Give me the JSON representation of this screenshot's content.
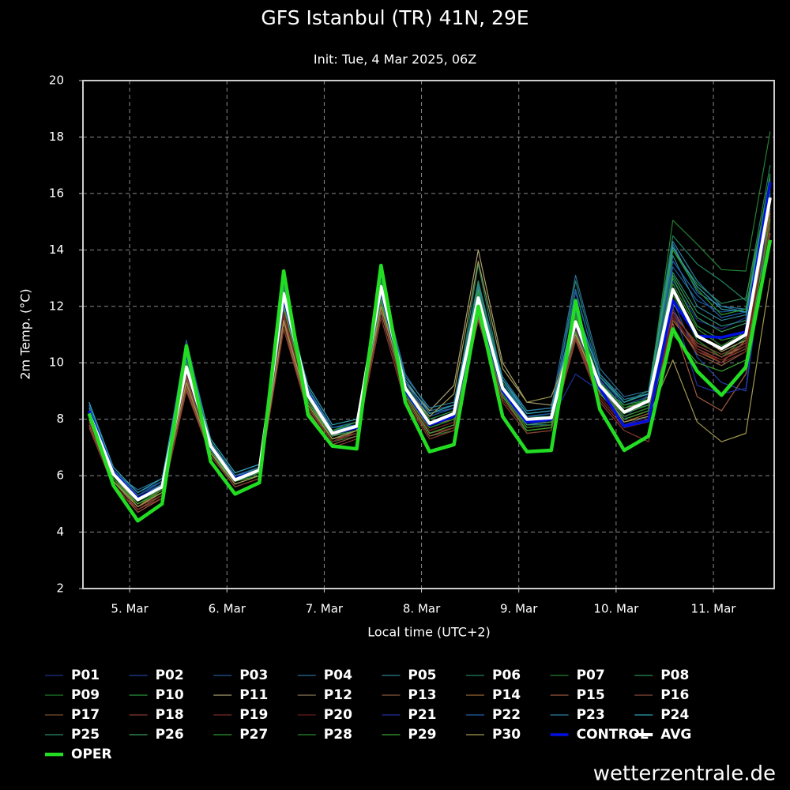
{
  "chart_data": {
    "type": "line",
    "title": "GFS Istanbul (TR) 41N, 29E",
    "subtitle": "Init: Tue, 4 Mar 2025, 06Z",
    "y_label": "2m Temp. (°C)",
    "x_label": "Local time (UTC+2)",
    "watermark": "wetterzentrale.de",
    "grid": true,
    "xlim": [
      4.52,
      11.625
    ],
    "xticks": [
      {
        "value": 5,
        "label": "5. Mar"
      },
      {
        "value": 6,
        "label": "6. Mar"
      },
      {
        "value": 7,
        "label": "7. Mar"
      },
      {
        "value": 8,
        "label": "8. Mar"
      },
      {
        "value": 9,
        "label": "9. Mar"
      },
      {
        "value": 10,
        "label": "10. Mar"
      },
      {
        "value": 11,
        "label": "11. Mar"
      }
    ],
    "ylim": [
      2,
      20
    ],
    "yticks": [
      2,
      4,
      6,
      8,
      10,
      12,
      14,
      16,
      18,
      20
    ],
    "x": [
      4.5833,
      4.8333,
      5.0833,
      5.3333,
      5.5833,
      5.8333,
      6.0833,
      6.3333,
      6.5833,
      6.8333,
      7.0833,
      7.3333,
      7.5833,
      7.8333,
      8.0833,
      8.3333,
      8.5833,
      8.8333,
      9.0833,
      9.3333,
      9.5833,
      9.8333,
      10.0833,
      10.3333,
      10.5833,
      10.8333,
      11.0833,
      11.3333,
      11.5833
    ],
    "series": [
      {
        "name": "P01",
        "color": "#1f2f8f",
        "width": 1.2,
        "values": [
          8.4,
          6.1,
          5.3,
          5.7,
          9.7,
          7.1,
          5.9,
          6.3,
          12.0,
          9.0,
          7.6,
          7.9,
          12.4,
          9.3,
          8.0,
          8.3,
          11.8,
          9.2,
          8.1,
          8.2,
          11.0,
          9.4,
          8.0,
          8.9,
          12.9,
          11.5,
          11.2,
          11.6,
          16.2
        ]
      },
      {
        "name": "P02",
        "color": "#2040a0",
        "width": 1.2,
        "values": [
          8.3,
          6.0,
          5.2,
          5.6,
          10.2,
          7.0,
          5.8,
          6.1,
          12.8,
          8.7,
          7.4,
          7.6,
          13.0,
          9.0,
          7.7,
          8.0,
          12.6,
          9.0,
          7.9,
          7.9,
          11.8,
          9.1,
          8.1,
          8.4,
          12.2,
          10.2,
          9.3,
          9.0,
          15.2
        ]
      },
      {
        "name": "P03",
        "color": "#1f5a9a",
        "width": 1.2,
        "values": [
          8.5,
          6.2,
          5.4,
          5.8,
          10.8,
          7.2,
          6.0,
          6.3,
          12.2,
          9.1,
          7.7,
          7.8,
          12.5,
          9.4,
          8.2,
          8.4,
          12.0,
          9.3,
          8.2,
          8.3,
          12.5,
          9.5,
          8.5,
          8.8,
          13.4,
          12.2,
          11.8,
          11.9,
          16.6
        ]
      },
      {
        "name": "P04",
        "color": "#2a6d9a",
        "width": 1.2,
        "values": [
          8.6,
          6.1,
          5.5,
          5.9,
          9.5,
          7.3,
          6.1,
          6.4,
          12.6,
          8.9,
          7.5,
          7.7,
          12.9,
          9.6,
          8.3,
          8.5,
          12.9,
          9.4,
          8.3,
          8.4,
          13.1,
          9.8,
          8.8,
          9.0,
          14.2,
          12.5,
          12.0,
          11.8,
          16.0
        ]
      },
      {
        "name": "P05",
        "color": "#2a8090",
        "width": 1.2,
        "values": [
          8.1,
          5.9,
          5.0,
          5.5,
          9.4,
          6.9,
          5.7,
          6.0,
          11.8,
          8.6,
          7.3,
          7.5,
          12.2,
          8.8,
          7.6,
          7.9,
          11.5,
          8.8,
          7.8,
          7.8,
          10.9,
          8.9,
          8.3,
          8.6,
          13.8,
          12.0,
          11.5,
          11.7,
          15.5
        ]
      },
      {
        "name": "P06",
        "color": "#1f8060",
        "width": 1.2,
        "values": [
          8.2,
          6.0,
          5.1,
          5.6,
          10.4,
          7.1,
          5.9,
          6.2,
          13.0,
          8.8,
          7.6,
          7.8,
          13.3,
          9.2,
          7.9,
          8.2,
          13.5,
          9.3,
          8.1,
          8.1,
          12.9,
          9.6,
          8.6,
          9.0,
          14.5,
          13.5,
          12.9,
          12.2,
          17.0
        ]
      },
      {
        "name": "P07",
        "color": "#228030",
        "width": 1.2,
        "values": [
          8.0,
          5.8,
          5.0,
          5.4,
          10.0,
          6.8,
          5.6,
          5.9,
          12.3,
          8.5,
          7.2,
          7.4,
          12.8,
          8.7,
          7.4,
          7.6,
          12.4,
          8.9,
          7.5,
          7.6,
          11.2,
          9.0,
          8.2,
          8.8,
          15.05,
          14.2,
          13.3,
          13.25,
          18.2
        ]
      },
      {
        "name": "P08",
        "color": "#2e8b57",
        "width": 1.2,
        "values": [
          8.3,
          6.1,
          5.2,
          5.7,
          9.9,
          7.0,
          5.9,
          6.3,
          12.7,
          8.9,
          7.6,
          7.9,
          12.6,
          9.1,
          7.9,
          8.2,
          12.8,
          9.2,
          8.0,
          8.1,
          11.9,
          9.3,
          8.4,
          8.7,
          14.0,
          12.8,
          12.1,
          12.3,
          16.4
        ]
      },
      {
        "name": "P09",
        "color": "#1f7f2a",
        "width": 1.2,
        "values": [
          8.2,
          5.9,
          5.1,
          5.5,
          9.6,
          7.0,
          5.8,
          6.1,
          11.9,
          8.6,
          7.4,
          7.7,
          12.3,
          8.9,
          7.7,
          8.0,
          12.1,
          8.9,
          7.8,
          7.9,
          11.3,
          9.1,
          8.3,
          8.5,
          12.4,
          10.8,
          10.2,
          10.9,
          15.9
        ]
      },
      {
        "name": "P10",
        "color": "#2a9a3a",
        "width": 1.2,
        "values": [
          8.4,
          6.2,
          5.3,
          5.8,
          10.3,
          7.2,
          6.0,
          6.3,
          12.9,
          9.0,
          7.7,
          7.9,
          12.4,
          9.2,
          8.0,
          8.3,
          12.2,
          9.1,
          8.0,
          8.0,
          11.6,
          9.2,
          8.5,
          8.7,
          13.0,
          11.3,
          10.8,
          11.0,
          16.1
        ]
      },
      {
        "name": "P11",
        "color": "#a8a070",
        "width": 1.2,
        "values": [
          8.1,
          6.0,
          5.0,
          5.5,
          9.2,
          6.9,
          5.8,
          6.2,
          11.5,
          8.7,
          7.4,
          7.8,
          12.0,
          9.3,
          8.3,
          9.2,
          14.0,
          10.0,
          8.6,
          8.5,
          11.0,
          9.3,
          8.4,
          8.6,
          12.1,
          11.0,
          10.4,
          10.8,
          15.3
        ]
      },
      {
        "name": "P12",
        "color": "#8a7a5a",
        "width": 1.2,
        "values": [
          8.0,
          5.9,
          4.9,
          5.4,
          9.0,
          6.8,
          5.7,
          6.0,
          11.2,
          8.4,
          7.2,
          7.5,
          11.8,
          8.8,
          7.5,
          7.8,
          11.6,
          8.8,
          7.7,
          7.8,
          11.1,
          9.0,
          8.0,
          8.3,
          11.8,
          10.6,
          10.2,
          10.6,
          15.0
        ]
      },
      {
        "name": "P13",
        "color": "#8a5a40",
        "width": 1.2,
        "values": [
          7.9,
          5.8,
          4.8,
          5.3,
          9.3,
          6.9,
          5.8,
          6.1,
          11.6,
          8.5,
          7.3,
          7.6,
          12.1,
          8.9,
          7.6,
          7.9,
          11.9,
          8.9,
          7.8,
          7.9,
          11.3,
          9.1,
          8.1,
          8.4,
          11.6,
          10.3,
          9.9,
          10.4,
          14.8
        ]
      },
      {
        "name": "P14",
        "color": "#9a6a30",
        "width": 1.2,
        "values": [
          8.0,
          5.9,
          4.9,
          5.5,
          9.5,
          7.0,
          5.9,
          6.2,
          11.9,
          8.7,
          7.5,
          7.7,
          12.4,
          9.0,
          7.8,
          8.0,
          12.3,
          9.0,
          7.9,
          8.0,
          11.2,
          9.0,
          7.9,
          8.2,
          11.5,
          10.4,
          10.0,
          10.8,
          15.4
        ]
      },
      {
        "name": "P15",
        "color": "#a05a40",
        "width": 1.2,
        "values": [
          7.8,
          5.7,
          4.7,
          5.2,
          9.1,
          6.7,
          5.6,
          5.9,
          11.4,
          8.3,
          7.1,
          7.4,
          11.9,
          8.7,
          7.4,
          7.7,
          11.7,
          8.7,
          7.6,
          7.7,
          10.9,
          8.7,
          7.7,
          8.0,
          11.4,
          8.8,
          8.3,
          9.6,
          14.6
        ]
      },
      {
        "name": "P16",
        "color": "#8a4a3a",
        "width": 1.2,
        "values": [
          8.1,
          5.9,
          5.0,
          5.4,
          9.4,
          6.9,
          5.7,
          6.0,
          11.7,
          8.5,
          7.3,
          7.5,
          12.1,
          8.8,
          7.6,
          7.9,
          12.0,
          8.9,
          7.7,
          7.8,
          11.0,
          8.8,
          7.8,
          8.1,
          11.9,
          10.5,
          10.1,
          10.5,
          15.1
        ]
      },
      {
        "name": "P17",
        "color": "#7a5030",
        "width": 1.2,
        "values": [
          7.9,
          5.8,
          4.9,
          5.3,
          9.2,
          6.8,
          5.8,
          6.1,
          11.5,
          8.4,
          7.2,
          7.6,
          11.9,
          8.9,
          7.5,
          7.8,
          11.8,
          8.8,
          7.7,
          7.8,
          11.1,
          8.9,
          8.0,
          8.3,
          11.7,
          10.7,
          10.3,
          10.7,
          15.2
        ]
      },
      {
        "name": "P18",
        "color": "#8a3a30",
        "width": 1.2,
        "values": [
          7.7,
          5.6,
          4.8,
          5.2,
          9.0,
          6.7,
          5.6,
          5.9,
          11.2,
          8.2,
          7.0,
          7.3,
          11.6,
          8.6,
          7.3,
          7.6,
          11.5,
          8.6,
          7.5,
          7.6,
          10.8,
          8.6,
          7.6,
          7.2,
          11.8,
          10.6,
          10.2,
          10.7,
          15.0
        ]
      },
      {
        "name": "P19",
        "color": "#7a2a2a",
        "width": 1.2,
        "values": [
          7.9,
          5.8,
          4.9,
          5.3,
          9.3,
          6.8,
          5.7,
          6.0,
          11.6,
          8.5,
          7.2,
          7.5,
          12.0,
          8.7,
          7.5,
          7.7,
          11.9,
          8.7,
          7.6,
          7.7,
          11.0,
          8.7,
          7.7,
          7.9,
          11.6,
          10.5,
          10.0,
          10.4,
          14.9
        ]
      },
      {
        "name": "P20",
        "color": "#6a1a1a",
        "width": 1.2,
        "values": [
          8.0,
          5.9,
          5.0,
          5.4,
          9.6,
          6.9,
          5.8,
          6.1,
          11.8,
          8.6,
          7.3,
          7.6,
          12.2,
          8.8,
          7.6,
          7.9,
          12.1,
          8.8,
          7.7,
          7.8,
          11.2,
          8.8,
          7.8,
          8.0,
          11.7,
          10.4,
          10.1,
          10.6,
          15.0
        ]
      },
      {
        "name": "P21",
        "color": "#2030a0",
        "width": 1.2,
        "values": [
          8.3,
          6.1,
          5.2,
          5.6,
          9.8,
          7.0,
          5.9,
          6.2,
          12.2,
          8.9,
          7.6,
          7.8,
          12.5,
          9.0,
          7.8,
          8.1,
          12.1,
          8.9,
          7.8,
          8.0,
          9.6,
          9.0,
          7.8,
          8.1,
          12.0,
          9.2,
          8.9,
          9.1,
          16.0
        ]
      },
      {
        "name": "P22",
        "color": "#2060b0",
        "width": 1.2,
        "values": [
          8.5,
          6.2,
          5.3,
          5.8,
          10.0,
          7.1,
          6.0,
          6.3,
          12.5,
          9.0,
          7.7,
          7.9,
          12.8,
          9.3,
          8.1,
          8.4,
          12.4,
          9.2,
          8.1,
          8.2,
          12.6,
          9.4,
          8.4,
          8.7,
          13.6,
          12.4,
          11.6,
          11.8,
          16.3
        ]
      },
      {
        "name": "P23",
        "color": "#2a80a0",
        "width": 1.2,
        "values": [
          8.4,
          6.0,
          5.2,
          5.7,
          10.1,
          7.2,
          6.0,
          6.2,
          12.6,
          9.1,
          7.6,
          7.8,
          12.7,
          9.5,
          8.4,
          8.6,
          12.7,
          9.5,
          8.3,
          8.4,
          11.8,
          9.6,
          8.7,
          8.9,
          14.3,
          12.9,
          12.0,
          11.9,
          16.5
        ]
      },
      {
        "name": "P24",
        "color": "#30a0b0",
        "width": 1.2,
        "values": [
          8.6,
          6.3,
          5.4,
          5.9,
          10.5,
          7.3,
          6.1,
          6.4,
          12.4,
          9.2,
          7.8,
          8.0,
          12.6,
          9.4,
          8.2,
          8.5,
          12.5,
          9.4,
          8.2,
          8.3,
          12.0,
          9.5,
          8.6,
          8.9,
          14.1,
          12.7,
          11.9,
          11.8,
          16.2
        ]
      },
      {
        "name": "P25",
        "color": "#2a8a6a",
        "width": 1.2,
        "values": [
          8.2,
          6.0,
          5.1,
          5.6,
          9.7,
          7.0,
          5.8,
          6.1,
          12.1,
          8.7,
          7.5,
          7.7,
          12.5,
          9.0,
          7.8,
          8.1,
          12.9,
          9.1,
          7.9,
          8.0,
          11.5,
          9.2,
          8.3,
          8.6,
          13.2,
          11.8,
          11.3,
          11.5,
          16.0
        ]
      },
      {
        "name": "P26",
        "color": "#3a9a5a",
        "width": 1.2,
        "values": [
          8.1,
          5.9,
          5.0,
          5.5,
          9.8,
          6.9,
          5.7,
          6.0,
          12.0,
          8.6,
          7.4,
          7.6,
          12.3,
          8.9,
          7.7,
          8.0,
          12.6,
          9.0,
          7.8,
          7.9,
          11.4,
          9.1,
          8.2,
          8.5,
          13.1,
          11.6,
          11.1,
          11.4,
          15.7
        ]
      },
      {
        "name": "P27",
        "color": "#2a9a2a",
        "width": 1.2,
        "values": [
          8.3,
          6.0,
          5.1,
          5.6,
          10.0,
          7.0,
          5.8,
          6.2,
          12.4,
          8.8,
          7.6,
          7.9,
          12.9,
          9.1,
          7.9,
          8.2,
          12.5,
          9.0,
          7.9,
          8.0,
          11.7,
          9.3,
          8.4,
          8.7,
          14.0,
          12.6,
          11.7,
          11.9,
          16.7
        ]
      },
      {
        "name": "P28",
        "color": "#2a8a2a",
        "width": 1.2,
        "values": [
          8.2,
          5.9,
          5.0,
          5.5,
          9.9,
          7.1,
          5.9,
          6.1,
          12.2,
          8.7,
          7.5,
          7.7,
          12.4,
          8.9,
          7.7,
          8.0,
          12.2,
          8.9,
          7.7,
          7.8,
          11.3,
          9.0,
          8.1,
          8.4,
          12.8,
          11.2,
          10.6,
          11.1,
          15.9
        ]
      },
      {
        "name": "P29",
        "color": "#3aa030",
        "width": 1.2,
        "values": [
          8.1,
          5.8,
          5.0,
          5.4,
          9.7,
          6.9,
          5.8,
          6.0,
          12.0,
          8.6,
          7.3,
          7.6,
          12.2,
          8.8,
          7.5,
          7.8,
          11.9,
          8.8,
          7.6,
          7.7,
          11.1,
          8.9,
          8.0,
          8.3,
          11.0,
          10.0,
          9.7,
          10.1,
          15.1
        ]
      },
      {
        "name": "P30",
        "color": "#a09a50",
        "width": 1.2,
        "values": [
          8.0,
          5.8,
          4.9,
          5.4,
          9.3,
          6.8,
          5.7,
          6.0,
          11.5,
          8.5,
          7.3,
          7.6,
          12.0,
          9.1,
          8.1,
          8.9,
          13.6,
          9.8,
          8.6,
          8.8,
          11.0,
          9.0,
          7.9,
          8.1,
          10.1,
          7.9,
          7.2,
          7.5,
          13.0
        ]
      },
      {
        "name": "CONTROL",
        "color": "#0010e0",
        "width": 3.5,
        "values": [
          8.3,
          6.1,
          5.2,
          5.6,
          9.8,
          7.0,
          5.9,
          6.2,
          12.3,
          8.9,
          7.5,
          7.7,
          12.6,
          9.0,
          7.8,
          8.1,
          12.2,
          9.0,
          7.9,
          8.0,
          11.4,
          9.1,
          7.75,
          7.95,
          12.2,
          10.95,
          10.9,
          11.1,
          16.4
        ]
      },
      {
        "name": "AVG",
        "color": "#ffffff",
        "width": 4,
        "values": [
          8.2,
          6.05,
          5.15,
          5.6,
          9.85,
          7.05,
          5.85,
          6.2,
          12.45,
          8.85,
          7.5,
          7.75,
          12.7,
          9.1,
          7.85,
          8.2,
          12.3,
          9.1,
          8.0,
          8.05,
          11.45,
          9.2,
          8.25,
          8.65,
          12.6,
          10.95,
          10.5,
          11.0,
          15.85
        ]
      },
      {
        "name": "OPER",
        "color": "#22dd22",
        "width": 4.5,
        "values": [
          8.2,
          5.65,
          4.4,
          5.0,
          10.6,
          6.5,
          5.35,
          5.75,
          13.25,
          8.15,
          7.05,
          6.95,
          13.45,
          8.6,
          6.85,
          7.1,
          12.0,
          8.1,
          6.85,
          6.9,
          12.2,
          8.35,
          6.9,
          7.4,
          11.2,
          9.7,
          8.85,
          9.85,
          14.35
        ]
      }
    ]
  }
}
